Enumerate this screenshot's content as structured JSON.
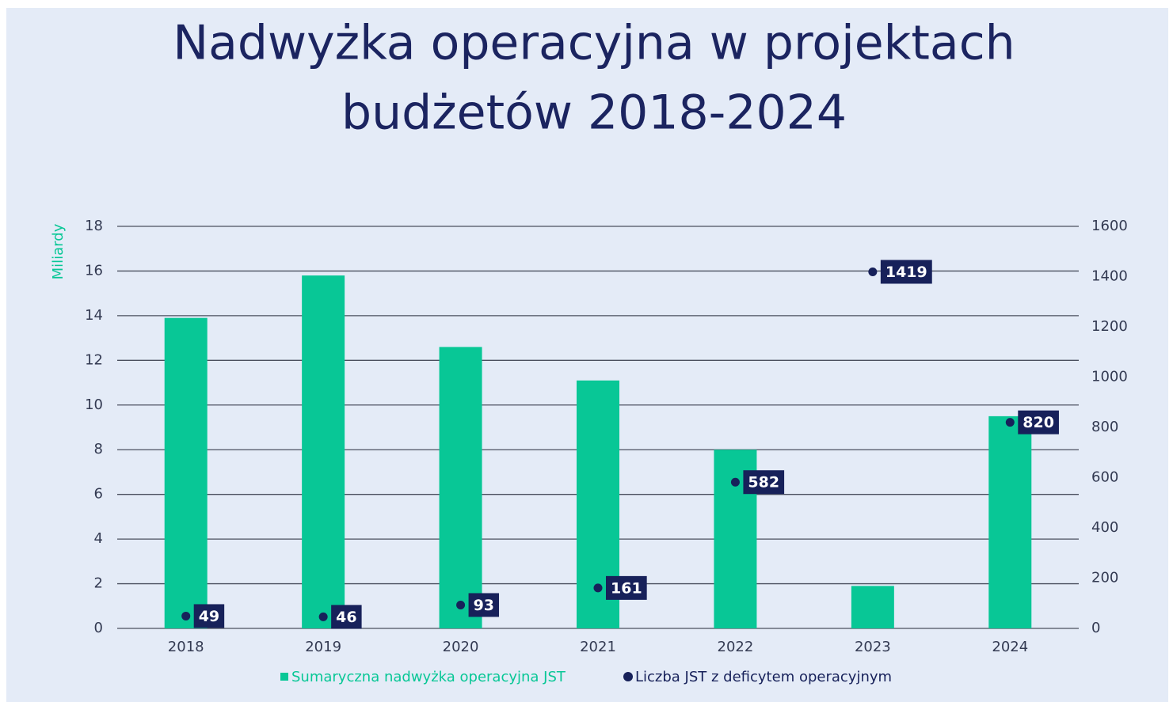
{
  "chart_data": {
    "type": "bar",
    "title": [
      "Nadwyżka operacyjna w projektach",
      "budżetów 2018-2024"
    ],
    "y_label": "Miliardy",
    "categories": [
      "2018",
      "2019",
      "2020",
      "2021",
      "2022",
      "2023",
      "2024"
    ],
    "series": [
      {
        "name": "Sumaryczna nadwyżka operacyjna JST",
        "type": "bar",
        "color": "#08c796",
        "values": [
          13.9,
          15.8,
          12.6,
          11.1,
          8.0,
          1.9,
          9.5
        ]
      },
      {
        "name": "Liczba JST z deficytem operacyjnym",
        "type": "scatter",
        "axis": "y2",
        "color": "#17215a",
        "values": [
          49,
          46,
          93,
          161,
          582,
          1419,
          820
        ]
      }
    ],
    "ylim": [
      0,
      18
    ],
    "yticks": [
      0,
      2,
      4,
      6,
      8,
      10,
      12,
      14,
      16,
      18
    ],
    "y2lim": [
      0,
      1600
    ],
    "y2ticks": [
      0,
      200,
      400,
      600,
      800,
      1000,
      1200,
      1400,
      1600
    ],
    "grid": true
  }
}
